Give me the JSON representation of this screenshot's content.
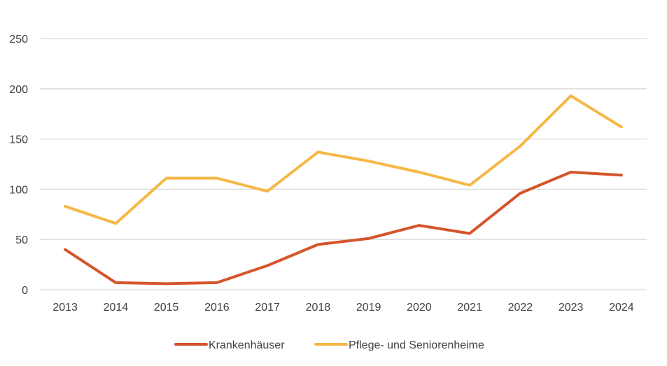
{
  "chart_data": {
    "type": "line",
    "title": "",
    "xlabel": "",
    "ylabel": "",
    "categories": [
      "2013",
      "2014",
      "2015",
      "2016",
      "2017",
      "2018",
      "2019",
      "2020",
      "2021",
      "2022",
      "2023",
      "2024"
    ],
    "ylim": [
      0,
      250
    ],
    "yticks": [
      "0",
      "50",
      "100",
      "150",
      "200",
      "250"
    ],
    "grid": true,
    "legend_position": "bottom",
    "series": [
      {
        "name": "Krankenhäuser",
        "color": "#d5552b",
        "values": [
          40,
          7,
          6,
          7,
          24,
          45,
          51,
          64,
          56,
          96,
          117,
          114
        ]
      },
      {
        "name": "Pflege- und Seniorenheime",
        "color": "#f5b846",
        "values": [
          83,
          66,
          111,
          111,
          98,
          137,
          128,
          117,
          104,
          143,
          193,
          162
        ]
      }
    ]
  }
}
